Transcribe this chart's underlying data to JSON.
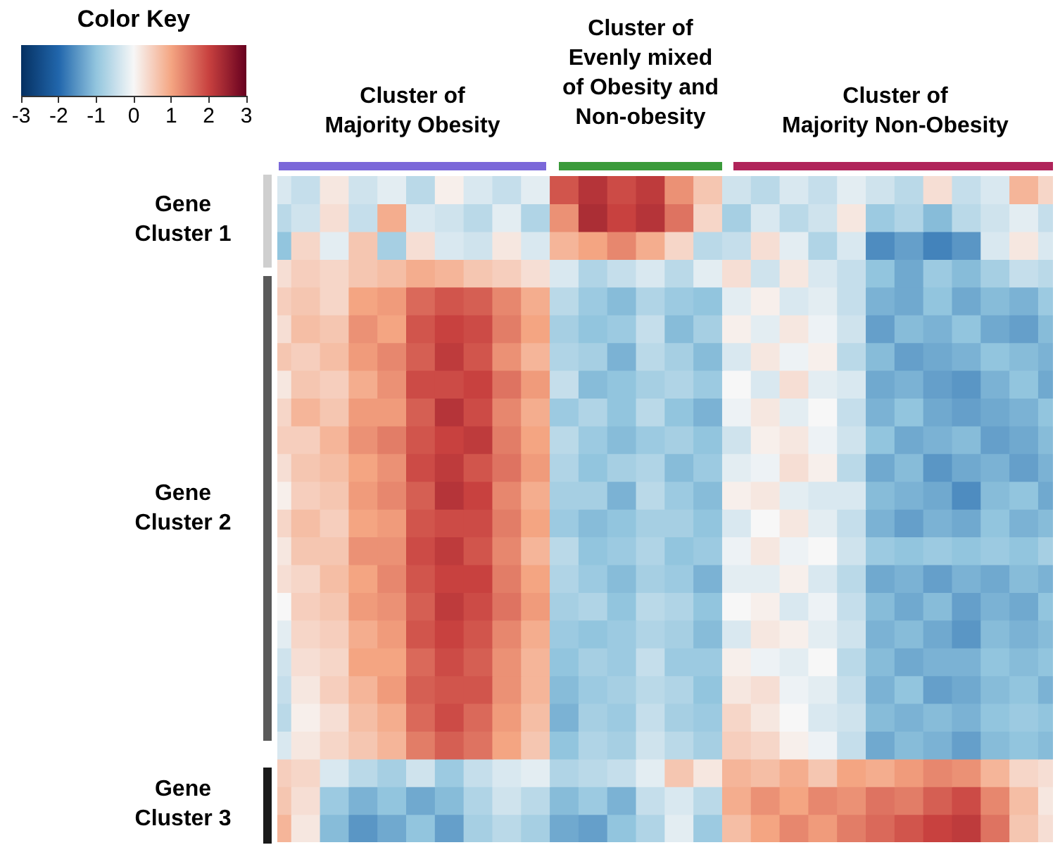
{
  "chart_data": {
    "type": "heatmap",
    "clabel": "Color Key",
    "clim": [
      -3,
      3
    ],
    "cticks": [
      -3,
      -2,
      -1,
      0,
      1,
      2,
      3
    ],
    "annotations": [
      "Cluster of\nMajority Obesity",
      "Cluster of\nEvenly mixed\nof Obesity and\nNon-obesity",
      "Cluster of\nMajority  Non-Obesity",
      "Gene\nCluster 1",
      "Gene\nCluster 2",
      "Gene\nCluster 3"
    ],
    "categories": [
      null,
      null,
      null,
      null,
      null,
      null,
      null,
      null,
      null,
      null,
      null,
      null,
      null,
      null,
      null,
      null,
      null,
      null,
      null,
      null,
      null,
      null,
      null,
      null,
      null,
      null,
      null,
      null
    ],
    "y_categories": [
      null,
      null,
      null,
      null,
      null,
      null,
      null,
      null,
      null,
      null,
      null,
      null,
      null,
      null,
      null,
      null,
      null,
      null,
      null,
      null,
      null,
      null,
      null,
      null
    ],
    "cells": [
      [
        -0.3,
        -0.5,
        0.2,
        -0.4,
        -0.2,
        -0.6,
        0.1,
        -0.3,
        -0.5,
        -0.2,
        1.8,
        2.2,
        1.9,
        2.1,
        1.2,
        0.6,
        -0.4,
        -0.6,
        -0.3,
        -0.5,
        -0.2,
        -0.4,
        -0.6,
        0.3,
        -0.5,
        -0.3,
        0.8,
        0.4
      ],
      [
        -0.6,
        -0.4,
        0.3,
        -0.5,
        0.9,
        -0.3,
        -0.4,
        -0.6,
        -0.2,
        -0.7,
        1.2,
        2.3,
        2.0,
        2.2,
        1.5,
        0.4,
        -0.8,
        -0.3,
        -0.6,
        -0.4,
        0.2,
        -0.9,
        -0.7,
        -1.1,
        -0.6,
        -0.4,
        -0.2,
        -0.5
      ],
      [
        -1.0,
        0.4,
        -0.2,
        0.6,
        -0.8,
        0.3,
        -0.3,
        -0.4,
        0.2,
        -0.3,
        0.8,
        1.0,
        1.3,
        0.9,
        0.4,
        -0.6,
        -0.5,
        0.3,
        -0.2,
        -0.7,
        -0.3,
        -1.6,
        -1.4,
        -1.7,
        -1.5,
        -0.3,
        0.2,
        -0.3
      ],
      [
        0.3,
        0.5,
        0.4,
        0.6,
        0.7,
        0.9,
        0.8,
        0.6,
        0.5,
        0.3,
        -0.3,
        -0.7,
        -0.5,
        -0.3,
        -0.6,
        -0.2,
        0.3,
        -0.4,
        0.2,
        -0.3,
        -0.5,
        -1.0,
        -1.3,
        -0.9,
        -1.1,
        -0.8,
        -0.5,
        -0.6
      ],
      [
        0.5,
        0.6,
        0.4,
        1.0,
        1.1,
        1.6,
        1.8,
        1.7,
        1.3,
        0.9,
        -0.6,
        -0.9,
        -1.1,
        -0.7,
        -0.9,
        -1.0,
        -0.2,
        0.1,
        -0.3,
        -0.2,
        -0.5,
        -1.2,
        -1.3,
        -1.0,
        -1.3,
        -1.1,
        -1.2,
        -0.9
      ],
      [
        0.3,
        0.7,
        0.6,
        1.2,
        1.0,
        1.8,
        2.0,
        1.9,
        1.4,
        1.0,
        -0.8,
        -1.0,
        -0.9,
        -0.5,
        -1.1,
        -0.8,
        0.1,
        -0.2,
        0.2,
        -0.1,
        -0.4,
        -1.4,
        -1.1,
        -1.2,
        -1.0,
        -1.3,
        -1.4,
        -1.1
      ],
      [
        0.6,
        0.5,
        0.7,
        1.1,
        1.3,
        1.7,
        2.1,
        1.8,
        1.2,
        0.8,
        -0.7,
        -0.8,
        -1.2,
        -0.6,
        -0.8,
        -1.1,
        -0.3,
        0.2,
        -0.1,
        0.1,
        -0.6,
        -1.1,
        -1.4,
        -1.3,
        -1.2,
        -1.0,
        -1.1,
        -1.2
      ],
      [
        0.2,
        0.6,
        0.5,
        0.9,
        1.2,
        1.9,
        1.9,
        2.0,
        1.5,
        1.1,
        -0.5,
        -1.1,
        -1.0,
        -0.8,
        -0.7,
        -0.9,
        0.0,
        -0.3,
        0.3,
        -0.2,
        -0.3,
        -1.3,
        -1.2,
        -1.4,
        -1.5,
        -1.2,
        -1.0,
        -1.3
      ],
      [
        0.4,
        0.8,
        0.6,
        1.1,
        1.1,
        1.7,
        2.2,
        1.9,
        1.3,
        0.9,
        -0.9,
        -0.7,
        -1.0,
        -0.6,
        -1.0,
        -1.2,
        -0.1,
        0.2,
        -0.2,
        0.0,
        -0.5,
        -1.2,
        -1.0,
        -1.3,
        -1.4,
        -1.3,
        -1.2,
        -1.0
      ],
      [
        0.5,
        0.5,
        0.8,
        1.2,
        1.4,
        1.8,
        2.0,
        2.1,
        1.4,
        1.0,
        -0.6,
        -0.9,
        -1.1,
        -0.9,
        -0.8,
        -1.0,
        -0.4,
        0.1,
        0.2,
        -0.1,
        -0.4,
        -1.0,
        -1.3,
        -1.2,
        -1.1,
        -1.4,
        -1.3,
        -1.1
      ],
      [
        0.3,
        0.6,
        0.7,
        1.0,
        1.2,
        1.9,
        2.1,
        1.8,
        1.5,
        1.1,
        -0.7,
        -1.0,
        -0.8,
        -0.7,
        -1.1,
        -0.9,
        -0.2,
        -0.1,
        0.3,
        0.1,
        -0.6,
        -1.3,
        -1.1,
        -1.5,
        -1.3,
        -1.2,
        -1.4,
        -1.2
      ],
      [
        0.1,
        0.5,
        0.6,
        1.1,
        1.3,
        1.7,
        2.2,
        2.0,
        1.3,
        0.9,
        -0.8,
        -0.8,
        -1.2,
        -0.6,
        -0.9,
        -1.1,
        0.1,
        0.2,
        -0.2,
        -0.3,
        -0.3,
        -1.1,
        -1.2,
        -1.3,
        -1.6,
        -1.1,
        -1.0,
        -1.3
      ],
      [
        0.4,
        0.7,
        0.5,
        1.0,
        1.1,
        1.8,
        1.9,
        1.9,
        1.4,
        1.0,
        -0.9,
        -1.1,
        -1.0,
        -0.8,
        -0.8,
        -1.0,
        -0.3,
        0.0,
        0.2,
        -0.2,
        -0.5,
        -1.2,
        -1.4,
        -1.2,
        -1.3,
        -1.0,
        -1.2,
        -1.1
      ],
      [
        0.2,
        0.6,
        0.6,
        1.2,
        1.2,
        1.9,
        2.1,
        1.8,
        1.3,
        0.8,
        -0.6,
        -1.0,
        -0.9,
        -0.7,
        -1.0,
        -0.9,
        -0.1,
        0.2,
        -0.1,
        0.0,
        -0.4,
        -0.9,
        -1.0,
        -0.9,
        -1.0,
        -0.9,
        -1.0,
        -0.8
      ],
      [
        0.3,
        0.4,
        0.7,
        1.0,
        1.3,
        1.8,
        2.0,
        2.0,
        1.4,
        1.0,
        -0.7,
        -0.9,
        -1.1,
        -0.8,
        -0.9,
        -1.2,
        -0.2,
        -0.2,
        0.1,
        -0.3,
        -0.6,
        -1.3,
        -1.2,
        -1.4,
        -1.2,
        -1.3,
        -1.1,
        -1.2
      ],
      [
        0.0,
        0.5,
        0.6,
        1.1,
        1.2,
        1.7,
        2.1,
        1.9,
        1.5,
        1.1,
        -0.8,
        -0.7,
        -1.0,
        -0.6,
        -0.7,
        -1.0,
        0.0,
        0.1,
        -0.3,
        -0.1,
        -0.5,
        -1.1,
        -1.3,
        -1.1,
        -1.4,
        -1.2,
        -1.3,
        -1.0
      ],
      [
        -0.2,
        0.4,
        0.5,
        0.9,
        1.1,
        1.8,
        2.0,
        1.8,
        1.3,
        0.9,
        -0.9,
        -1.0,
        -0.9,
        -0.7,
        -0.8,
        -1.1,
        -0.3,
        0.2,
        0.1,
        -0.2,
        -0.4,
        -1.2,
        -1.1,
        -1.3,
        -1.5,
        -1.1,
        -1.2,
        -1.1
      ],
      [
        -0.4,
        0.3,
        0.4,
        1.0,
        1.0,
        1.6,
        1.9,
        1.7,
        1.2,
        0.8,
        -1.0,
        -0.8,
        -0.9,
        -0.5,
        -0.9,
        -0.9,
        0.1,
        -0.1,
        -0.2,
        0.0,
        -0.6,
        -1.1,
        -1.3,
        -1.2,
        -1.2,
        -1.0,
        -1.1,
        -1.0
      ],
      [
        -0.5,
        0.2,
        0.5,
        0.8,
        1.1,
        1.7,
        1.8,
        1.8,
        1.2,
        0.8,
        -1.1,
        -0.9,
        -0.8,
        -0.6,
        -0.7,
        -1.0,
        0.2,
        0.3,
        -0.1,
        -0.2,
        -0.5,
        -1.2,
        -1.0,
        -1.4,
        -1.3,
        -1.1,
        -1.0,
        -1.2
      ],
      [
        -0.6,
        0.1,
        0.3,
        0.7,
        0.9,
        1.6,
        1.9,
        1.6,
        1.1,
        0.7,
        -1.2,
        -0.8,
        -0.9,
        -0.5,
        -0.8,
        -0.9,
        0.4,
        0.2,
        0.0,
        -0.3,
        -0.4,
        -1.1,
        -1.2,
        -1.1,
        -1.2,
        -1.0,
        -0.9,
        -1.0
      ],
      [
        -0.3,
        0.2,
        0.4,
        0.6,
        0.8,
        1.4,
        1.7,
        1.5,
        1.0,
        0.6,
        -1.0,
        -0.7,
        -0.8,
        -0.4,
        -0.6,
        -0.8,
        0.5,
        0.4,
        0.1,
        -0.1,
        -0.5,
        -1.3,
        -1.1,
        -1.2,
        -1.4,
        -1.1,
        -1.0,
        -1.1
      ],
      [
        0.5,
        0.4,
        -0.3,
        -0.6,
        -0.8,
        -0.4,
        -0.9,
        -0.5,
        -0.3,
        -0.2,
        -0.7,
        -0.6,
        -0.5,
        -0.2,
        0.6,
        0.2,
        0.8,
        0.7,
        0.9,
        0.6,
        1.0,
        0.9,
        1.1,
        1.3,
        1.2,
        0.8,
        0.4,
        0.3
      ],
      [
        0.6,
        0.3,
        -0.9,
        -1.2,
        -1.0,
        -1.3,
        -1.1,
        -0.7,
        -0.4,
        -0.6,
        -1.1,
        -0.9,
        -1.2,
        -0.5,
        -0.3,
        -0.6,
        0.9,
        1.2,
        1.0,
        1.3,
        1.2,
        1.5,
        1.4,
        1.7,
        1.9,
        1.3,
        0.7,
        0.2
      ],
      [
        0.8,
        0.2,
        -1.1,
        -1.5,
        -1.3,
        -1.0,
        -1.4,
        -0.8,
        -0.6,
        -0.8,
        -1.3,
        -1.4,
        -1.0,
        -0.7,
        -0.2,
        -0.9,
        0.7,
        1.0,
        1.3,
        1.1,
        1.4,
        1.6,
        1.8,
        2.0,
        2.1,
        1.5,
        0.6,
        0.3
      ]
    ]
  }
}
